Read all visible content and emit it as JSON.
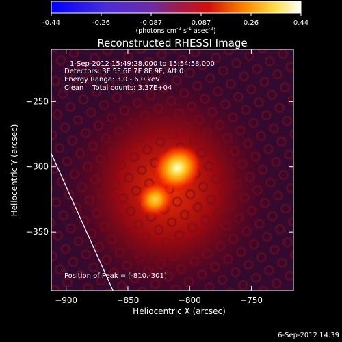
{
  "colorbar": {
    "tick_labels": [
      "-0.44",
      "-0.26",
      "-0.087",
      "0.087",
      "0.26",
      "0.44"
    ],
    "range": [
      -0.44,
      0.44
    ],
    "units": {
      "base": "(photons cm",
      "sup1": "-2",
      "mid1": " s",
      "sup2": "-1",
      "mid2": " asec",
      "sup3": "-2",
      "end": ")"
    }
  },
  "chart_data": {
    "type": "heatmap",
    "title": "Reconstructed RHESSI Image",
    "xlabel": "Heliocentric X (arcsec)",
    "ylabel": "Heliocentric Y (arcsec)",
    "xlim": [
      -912,
      -716
    ],
    "ylim": [
      -395,
      -210
    ],
    "x_ticks": [
      -900,
      -850,
      -800,
      -750
    ],
    "y_ticks": [
      -250,
      -300,
      -350
    ],
    "x_tick_labels": [
      "−900",
      "−850",
      "−800",
      "−750"
    ],
    "y_tick_labels": [
      "−250",
      "−300",
      "−350"
    ],
    "sources": [
      {
        "x": -810,
        "y": -301,
        "peak": 0.44
      },
      {
        "x": -828,
        "y": -325,
        "peak": 0.31
      }
    ],
    "limb_line": [
      [
        -912,
        -290
      ],
      [
        -862,
        -395
      ]
    ]
  },
  "annotations": {
    "time_range": "1-Sep-2012 15:49:28.000 to 15:54:58.000",
    "detectors": "Detectors: 3F 5F 6F 7F 8F 9F, Att 0",
    "energy": "Energy Range: 3.0 - 6.0 keV",
    "method": "Clean    Total counts: 3.37E+04",
    "peak_position": "Position of Peak = [-810,-301]"
  },
  "footer_date": "6-Sep-2012 14:39"
}
